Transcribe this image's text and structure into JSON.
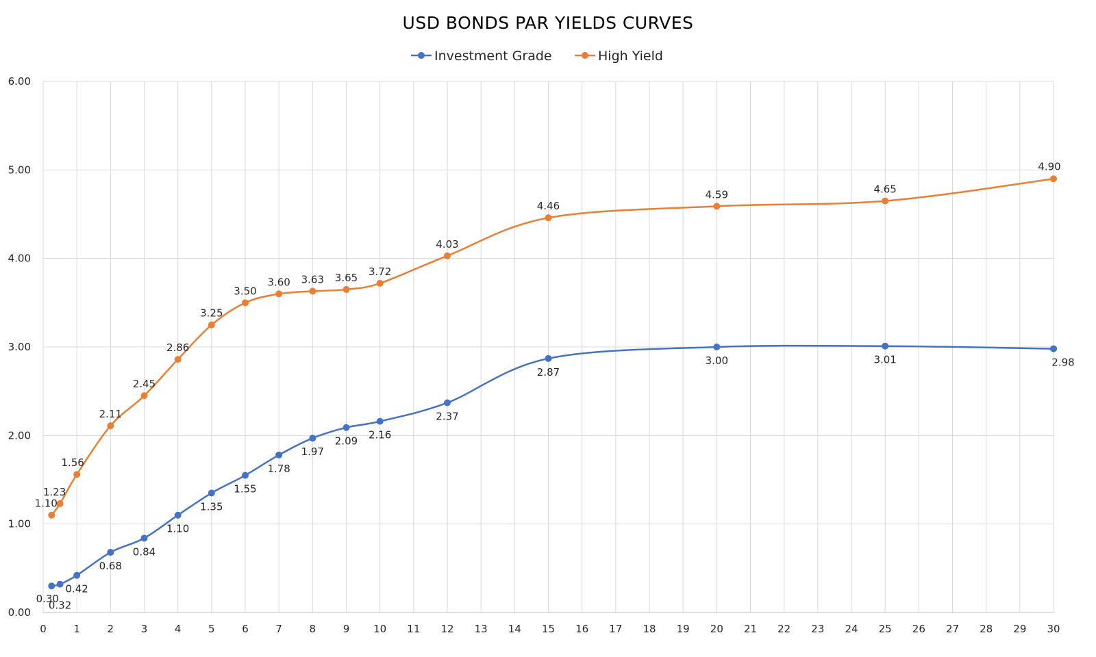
{
  "chart_data": {
    "type": "line",
    "title": "USD BONDS PAR YIELDS CURVES",
    "xlabel": "",
    "ylabel": "",
    "xlim": [
      0,
      30
    ],
    "ylim": [
      0,
      6
    ],
    "x_ticks": [
      "0",
      "1",
      "2",
      "3",
      "4",
      "5",
      "6",
      "7",
      "8",
      "9",
      "10",
      "11",
      "12",
      "13",
      "14",
      "15",
      "16",
      "17",
      "18",
      "19",
      "20",
      "21",
      "22",
      "23",
      "24",
      "25",
      "26",
      "27",
      "28",
      "29",
      "30"
    ],
    "y_ticks": [
      "0.00",
      "1.00",
      "2.00",
      "3.00",
      "4.00",
      "5.00",
      "6.00"
    ],
    "grid": true,
    "legend_position": "top-center",
    "series": [
      {
        "name": "Investment Grade",
        "color": "#4472C4",
        "label_position": "below",
        "x": [
          0.25,
          0.5,
          1,
          2,
          3,
          4,
          5,
          6,
          7,
          8,
          9,
          10,
          12,
          15,
          20,
          25,
          30
        ],
        "values": [
          0.3,
          0.32,
          0.42,
          0.68,
          0.84,
          1.1,
          1.35,
          1.55,
          1.78,
          1.97,
          2.09,
          2.16,
          2.37,
          2.87,
          3.0,
          3.01,
          2.98
        ],
        "labels": [
          "0.30",
          "0.32",
          "0.42",
          "0.68",
          "0.84",
          "1.10",
          "1.35",
          "1.55",
          "1.78",
          "1.97",
          "2.09",
          "2.16",
          "2.37",
          "2.87",
          "3.00",
          "3.01",
          "2.98"
        ]
      },
      {
        "name": "High Yield",
        "color": "#ED7D31",
        "label_position": "above",
        "x": [
          0.25,
          0.5,
          1,
          2,
          3,
          4,
          5,
          6,
          7,
          8,
          9,
          10,
          12,
          15,
          20,
          25,
          30
        ],
        "values": [
          1.1,
          1.23,
          1.56,
          2.11,
          2.45,
          2.86,
          3.25,
          3.5,
          3.6,
          3.63,
          3.65,
          3.72,
          4.03,
          4.46,
          4.59,
          4.65,
          4.9
        ],
        "labels": [
          "1.10",
          "1.23",
          "1.56",
          "2.11",
          "2.45",
          "2.86",
          "3.25",
          "3.50",
          "3.60",
          "3.63",
          "3.65",
          "3.72",
          "4.03",
          "4.46",
          "4.59",
          "4.65",
          "4.90"
        ]
      }
    ]
  }
}
